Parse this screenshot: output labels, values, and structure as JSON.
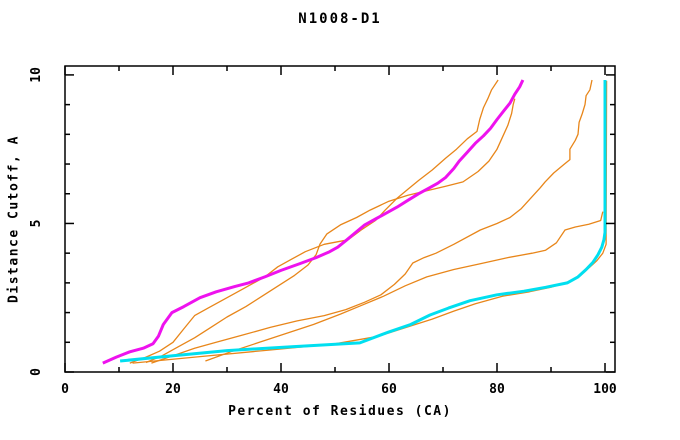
{
  "chart_data": {
    "type": "line",
    "title": "N1008-D1",
    "xlabel": "Percent of Residues (CA)",
    "ylabel": "Distance Cutoff, A",
    "xlim": [
      0,
      101.85
    ],
    "ylim": [
      0,
      10.3
    ],
    "x_ticks_major": [
      0,
      20,
      40,
      60,
      80,
      100
    ],
    "x_ticks_minor": [
      10,
      30,
      50,
      70,
      90
    ],
    "y_ticks_major": [
      0,
      5,
      10
    ],
    "y_ticks_minor": [
      1,
      2,
      3,
      4,
      6,
      7,
      8,
      9
    ],
    "grid": false,
    "legend_position": "none",
    "axis_color": "#000000",
    "colors": {
      "orange": "#e8861a",
      "magenta": "#ee12ee",
      "cyan": "#00dff0"
    },
    "series": [
      {
        "name": "orange-model-1",
        "color": "#e8861a",
        "width": 1.3,
        "points": [
          [
            12,
            0.3
          ],
          [
            15,
            0.5
          ],
          [
            17.5,
            0.7
          ],
          [
            20,
            1.0
          ],
          [
            22,
            1.45
          ],
          [
            24,
            1.9
          ],
          [
            26.5,
            2.15
          ],
          [
            29.5,
            2.45
          ],
          [
            33,
            2.8
          ],
          [
            37,
            3.2
          ],
          [
            39.4,
            3.54
          ],
          [
            42,
            3.8
          ],
          [
            44.5,
            4.05
          ],
          [
            48,
            4.3
          ],
          [
            52.4,
            4.45
          ],
          [
            55,
            4.8
          ],
          [
            57.5,
            5.1
          ],
          [
            59.3,
            5.45
          ],
          [
            61.5,
            5.85
          ],
          [
            63.5,
            6.15
          ],
          [
            65.5,
            6.45
          ],
          [
            68,
            6.8
          ],
          [
            70.5,
            7.2
          ],
          [
            72.5,
            7.5
          ],
          [
            74.5,
            7.85
          ],
          [
            76.3,
            8.1
          ],
          [
            76.8,
            8.5
          ],
          [
            77.5,
            8.9
          ],
          [
            78.3,
            9.2
          ],
          [
            79,
            9.5
          ],
          [
            80.2,
            9.83
          ]
        ]
      },
      {
        "name": "orange-model-2",
        "color": "#e8861a",
        "width": 1.3,
        "points": [
          [
            15,
            0.32
          ],
          [
            18,
            0.55
          ],
          [
            21,
            0.85
          ],
          [
            24,
            1.15
          ],
          [
            27,
            1.5
          ],
          [
            30,
            1.85
          ],
          [
            33.5,
            2.2
          ],
          [
            36.5,
            2.55
          ],
          [
            39.5,
            2.9
          ],
          [
            42.5,
            3.25
          ],
          [
            45,
            3.6
          ],
          [
            46.5,
            3.95
          ],
          [
            47.2,
            4.3
          ],
          [
            48.5,
            4.65
          ],
          [
            51,
            4.95
          ],
          [
            54,
            5.2
          ],
          [
            56.5,
            5.45
          ],
          [
            60,
            5.75
          ],
          [
            63.5,
            5.95
          ],
          [
            67,
            6.1
          ],
          [
            70.5,
            6.25
          ],
          [
            73.7,
            6.4
          ],
          [
            76.5,
            6.75
          ],
          [
            78.5,
            7.1
          ],
          [
            80,
            7.5
          ],
          [
            81,
            7.9
          ],
          [
            82,
            8.3
          ],
          [
            82.7,
            8.7
          ],
          [
            83,
            9.0
          ],
          [
            83.3,
            9.2
          ]
        ]
      },
      {
        "name": "orange-model-3",
        "color": "#e8861a",
        "width": 1.3,
        "points": [
          [
            16,
            0.3
          ],
          [
            20,
            0.55
          ],
          [
            24,
            0.8
          ],
          [
            28,
            1.0
          ],
          [
            33,
            1.25
          ],
          [
            38,
            1.5
          ],
          [
            43,
            1.72
          ],
          [
            48,
            1.9
          ],
          [
            52,
            2.1
          ],
          [
            55.5,
            2.35
          ],
          [
            58.5,
            2.6
          ],
          [
            61,
            2.95
          ],
          [
            63,
            3.3
          ],
          [
            64.4,
            3.67
          ],
          [
            66.5,
            3.85
          ],
          [
            68.7,
            4.0
          ],
          [
            72,
            4.3
          ],
          [
            76.9,
            4.78
          ],
          [
            80,
            5.0
          ],
          [
            82.4,
            5.2
          ],
          [
            84.5,
            5.5
          ],
          [
            86.5,
            5.9
          ],
          [
            88,
            6.2
          ],
          [
            88.9,
            6.4
          ],
          [
            90.5,
            6.7
          ],
          [
            92.5,
            7.0
          ],
          [
            93.5,
            7.15
          ],
          [
            93.5,
            7.5
          ],
          [
            94.5,
            7.8
          ],
          [
            95,
            8.0
          ],
          [
            95.2,
            8.4
          ],
          [
            95.8,
            8.7
          ],
          [
            96.3,
            9.0
          ],
          [
            96.5,
            9.3
          ],
          [
            97.2,
            9.5
          ],
          [
            97.6,
            9.83
          ]
        ]
      },
      {
        "name": "orange-model-4",
        "color": "#e8861a",
        "width": 1.3,
        "points": [
          [
            26,
            0.37
          ],
          [
            31,
            0.7
          ],
          [
            36,
            1.0
          ],
          [
            41,
            1.3
          ],
          [
            46,
            1.6
          ],
          [
            51,
            1.95
          ],
          [
            55,
            2.25
          ],
          [
            59,
            2.55
          ],
          [
            63,
            2.9
          ],
          [
            67,
            3.2
          ],
          [
            72,
            3.45
          ],
          [
            77,
            3.65
          ],
          [
            82,
            3.85
          ],
          [
            86.5,
            4.0
          ],
          [
            89,
            4.1
          ],
          [
            91,
            4.35
          ],
          [
            92.6,
            4.78
          ],
          [
            94.5,
            4.88
          ],
          [
            97,
            4.97
          ],
          [
            99.2,
            5.1
          ],
          [
            99.6,
            5.4
          ]
        ]
      },
      {
        "name": "orange-model-5",
        "color": "#e8861a",
        "width": 1.3,
        "points": [
          [
            12.5,
            0.3
          ],
          [
            25,
            0.52
          ],
          [
            38,
            0.74
          ],
          [
            50,
            0.95
          ],
          [
            58,
            1.2
          ],
          [
            64,
            1.55
          ],
          [
            68,
            1.78
          ],
          [
            72,
            2.05
          ],
          [
            76,
            2.3
          ],
          [
            81,
            2.55
          ],
          [
            86,
            2.7
          ],
          [
            90,
            2.85
          ],
          [
            93.5,
            3.05
          ],
          [
            95.5,
            3.25
          ],
          [
            97,
            3.5
          ],
          [
            98.5,
            3.75
          ],
          [
            99.6,
            4.0
          ],
          [
            100.2,
            4.3
          ],
          [
            100.3,
            9.8
          ]
        ]
      },
      {
        "name": "magenta-highlighted-model",
        "color": "#ee12ee",
        "width": 3,
        "points": [
          [
            7,
            0.3
          ],
          [
            9.5,
            0.5
          ],
          [
            12,
            0.68
          ],
          [
            14.5,
            0.8
          ],
          [
            16.3,
            0.95
          ],
          [
            17.3,
            1.2
          ],
          [
            18.2,
            1.6
          ],
          [
            19.8,
            2.0
          ],
          [
            22,
            2.2
          ],
          [
            25,
            2.5
          ],
          [
            28,
            2.7
          ],
          [
            31.5,
            2.88
          ],
          [
            34,
            3.0
          ],
          [
            37,
            3.2
          ],
          [
            40,
            3.42
          ],
          [
            43.5,
            3.65
          ],
          [
            46.5,
            3.85
          ],
          [
            49,
            4.05
          ],
          [
            50.5,
            4.2
          ],
          [
            52,
            4.42
          ],
          [
            53.5,
            4.65
          ],
          [
            55.5,
            4.95
          ],
          [
            57.5,
            5.15
          ],
          [
            59.5,
            5.35
          ],
          [
            61.5,
            5.55
          ],
          [
            63.5,
            5.78
          ],
          [
            65.5,
            6.0
          ],
          [
            67.5,
            6.2
          ],
          [
            69,
            6.35
          ],
          [
            70.5,
            6.55
          ],
          [
            72,
            6.85
          ],
          [
            73,
            7.1
          ],
          [
            74.5,
            7.4
          ],
          [
            76,
            7.7
          ],
          [
            77.5,
            7.95
          ],
          [
            78.8,
            8.2
          ],
          [
            80,
            8.5
          ],
          [
            81.3,
            8.8
          ],
          [
            82.4,
            9.05
          ],
          [
            83.3,
            9.35
          ],
          [
            84.2,
            9.6
          ],
          [
            84.8,
            9.83
          ]
        ]
      },
      {
        "name": "cyan-highlighted-model",
        "color": "#00dff0",
        "width": 3,
        "points": [
          [
            10.2,
            0.37
          ],
          [
            20,
            0.55
          ],
          [
            30,
            0.72
          ],
          [
            42,
            0.85
          ],
          [
            54.6,
            0.98
          ],
          [
            60,
            1.35
          ],
          [
            64,
            1.6
          ],
          [
            67.6,
            1.92
          ],
          [
            71,
            2.15
          ],
          [
            75,
            2.4
          ],
          [
            80,
            2.6
          ],
          [
            85,
            2.72
          ],
          [
            89,
            2.85
          ],
          [
            93,
            3.0
          ],
          [
            95,
            3.2
          ],
          [
            96.5,
            3.45
          ],
          [
            97.8,
            3.7
          ],
          [
            98.7,
            3.95
          ],
          [
            99.4,
            4.2
          ],
          [
            99.8,
            4.45
          ],
          [
            100,
            4.7
          ],
          [
            100,
            9.83
          ]
        ]
      }
    ]
  }
}
